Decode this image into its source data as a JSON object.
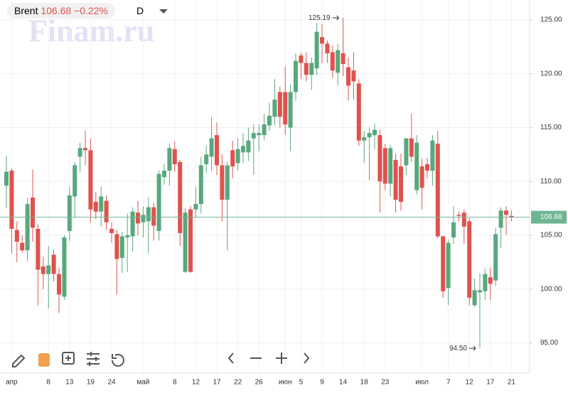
{
  "header": {
    "symbol": "Brent",
    "price": "106.68",
    "change": "−0.22%",
    "interval": "D"
  },
  "watermark": "Finam.ru",
  "chart_data": {
    "type": "candlestick",
    "up_color": "#58a87d",
    "down_color": "#e0524d",
    "last_color": "#6fb593",
    "categories": [
      null,
      "апр",
      null,
      null,
      null,
      null,
      null,
      null,
      "8",
      null,
      null,
      null,
      "13",
      null,
      null,
      null,
      "19",
      null,
      null,
      null,
      "24",
      null,
      null,
      null,
      null,
      null,
      "май",
      null,
      null,
      null,
      null,
      null,
      "8",
      null,
      null,
      null,
      "12",
      null,
      null,
      null,
      "17",
      null,
      null,
      null,
      "22",
      null,
      null,
      null,
      "26",
      null,
      null,
      null,
      null,
      "июн",
      null,
      null,
      "5",
      null,
      null,
      null,
      "9",
      null,
      null,
      null,
      "14",
      null,
      null,
      null,
      "18",
      null,
      null,
      null,
      "23",
      null,
      null,
      null,
      null,
      null,
      null,
      "июл",
      null,
      null,
      null,
      null,
      "7",
      null,
      null,
      null,
      "12",
      null,
      null,
      null,
      "17",
      null,
      null,
      null,
      "21"
    ],
    "open": [
      109.6,
      111.0,
      105.5,
      104.3,
      103.6,
      108.5,
      105.6,
      102.1,
      101.4,
      103.2,
      101.4,
      99.3,
      105.4,
      108.6,
      112.3,
      113.1,
      112.9,
      108.1,
      107.2,
      108.2,
      105.6,
      105.1,
      102.9,
      104.8,
      104.9,
      107.1,
      106.2,
      106.3,
      107.6,
      105.4,
      110.4,
      111.0,
      113.0,
      111.8,
      101.6,
      107.4,
      107.4,
      107.9,
      111.6,
      112.3,
      114.3,
      111.5,
      108.3,
      112.9,
      111.7,
      112.7,
      112.7,
      114.0,
      114.3,
      114.3,
      115.2,
      116.0,
      118.3,
      118.3,
      115.0,
      118.3,
      121.7,
      121.0,
      119.9,
      120.5,
      123.4,
      122.8,
      122.0,
      120.1,
      121.9,
      120.6,
      120.3,
      119.1,
      113.8,
      114.1,
      114.3,
      114.3,
      113.1,
      109.8,
      112.0,
      111.4,
      111.5,
      114.0,
      109.2,
      111.4,
      111.6,
      111.0,
      113.5,
      104.9,
      100.1,
      104.8,
      106.9,
      107.1,
      106.3,
      98.5,
      99.7,
      99.8,
      101.1,
      100.8,
      105.7,
      107.3,
      106.8
    ],
    "high": [
      112.4,
      111.2,
      106.3,
      105.0,
      108.5,
      111.1,
      106.0,
      103.0,
      104.0,
      103.7,
      102.0,
      105.0,
      109.5,
      111.8,
      113.6,
      114.7,
      114.0,
      109.0,
      109.5,
      108.7,
      106.2,
      105.5,
      105.3,
      107.0,
      107.6,
      108.2,
      107.7,
      108.5,
      108.0,
      111.0,
      111.6,
      113.5,
      113.7,
      112.0,
      107.5,
      107.7,
      109.5,
      112.3,
      113.3,
      116.0,
      115.5,
      112.5,
      111.8,
      113.8,
      114.0,
      114.5,
      115.0,
      115.3,
      115.3,
      116.3,
      117.3,
      119.5,
      118.8,
      120.7,
      119.0,
      121.9,
      122.0,
      122.0,
      121.5,
      124.7,
      124.6,
      123.1,
      122.6,
      122.8,
      125.19,
      121.5,
      122.0,
      119.5,
      114.7,
      115.0,
      115.4,
      114.8,
      113.5,
      113.4,
      112.6,
      112.6,
      114.0,
      116.3,
      114.3,
      112.1,
      112.2,
      114.3,
      114.7,
      105.0,
      104.6,
      107.7,
      107.2,
      107.4,
      106.6,
      101.0,
      101.5,
      101.9,
      102.0,
      105.7,
      107.6,
      107.7,
      107.3
    ],
    "low": [
      107.5,
      103.3,
      102.5,
      103.4,
      102.6,
      104.4,
      98.5,
      100.0,
      98.2,
      100.7,
      97.8,
      99.0,
      104.5,
      106.7,
      110.9,
      111.5,
      106.2,
      106.5,
      105.8,
      105.5,
      104.3,
      99.5,
      101.5,
      101.6,
      103.5,
      105.0,
      104.8,
      103.3,
      104.5,
      104.5,
      109.7,
      109.6,
      110.9,
      104.0,
      101.5,
      101.5,
      106.7,
      107.0,
      110.8,
      111.0,
      110.6,
      106.3,
      103.6,
      110.3,
      111.0,
      111.7,
      111.9,
      110.6,
      112.8,
      113.8,
      114.7,
      115.2,
      115.0,
      114.3,
      112.8,
      117.5,
      119.5,
      119.3,
      118.5,
      119.9,
      121.0,
      121.0,
      119.6,
      118.9,
      119.8,
      117.5,
      117.6,
      113.3,
      111.7,
      110.1,
      113.0,
      107.1,
      109.2,
      108.6,
      107.1,
      107.3,
      110.6,
      111.8,
      108.8,
      107.4,
      110.3,
      109.6,
      104.7,
      99.2,
      98.5,
      104.2,
      106.3,
      104.2,
      98.5,
      98.3,
      94.5,
      99.0,
      99.0,
      100.3,
      103.8,
      105.0,
      106.3
    ],
    "close": [
      110.9,
      105.6,
      104.4,
      103.6,
      107.9,
      105.7,
      101.8,
      101.4,
      102.2,
      101.4,
      99.5,
      104.8,
      108.7,
      111.5,
      113.1,
      112.9,
      107.4,
      107.2,
      108.6,
      106.2,
      105.2,
      102.8,
      104.9,
      105.0,
      107.2,
      106.1,
      106.9,
      107.6,
      105.9,
      110.7,
      111.0,
      113.1,
      111.6,
      105.2,
      107.1,
      101.6,
      107.9,
      111.5,
      112.5,
      114.0,
      111.5,
      108.3,
      111.5,
      111.4,
      113.0,
      113.3,
      113.8,
      114.5,
      114.5,
      115.3,
      116.1,
      117.6,
      116.0,
      115.3,
      118.3,
      121.2,
      121.0,
      119.9,
      121.0,
      123.9,
      122.8,
      121.9,
      120.3,
      122.2,
      120.9,
      118.9,
      119.3,
      113.8,
      114.1,
      114.5,
      114.8,
      110.0,
      109.8,
      113.1,
      108.3,
      108.1,
      114.0,
      112.3,
      113.6,
      109.4,
      111.0,
      113.8,
      104.9,
      99.8,
      104.3,
      106.2,
      106.8,
      105.8,
      99.2,
      99.9,
      99.9,
      101.4,
      100.5,
      105.1,
      107.3,
      106.9,
      106.68
    ],
    "ylim": [
      92.2,
      126.85
    ],
    "yticks": [
      {
        "value": 95,
        "label": "95.00"
      },
      {
        "value": 100,
        "label": "100.00"
      },
      {
        "value": 105,
        "label": "105.00"
      },
      {
        "value": 110,
        "label": "110.00"
      },
      {
        "value": 115,
        "label": "115.00"
      },
      {
        "value": 120,
        "label": "120.00"
      },
      {
        "value": 125,
        "label": "125.00"
      }
    ],
    "last_price": {
      "value": 106.68,
      "label": "106.68"
    },
    "annotations": [
      {
        "value": 125.19,
        "label": "125.19",
        "at": "high"
      },
      {
        "value": 94.5,
        "label": "94.50",
        "at": "low"
      }
    ],
    "grid": true
  }
}
